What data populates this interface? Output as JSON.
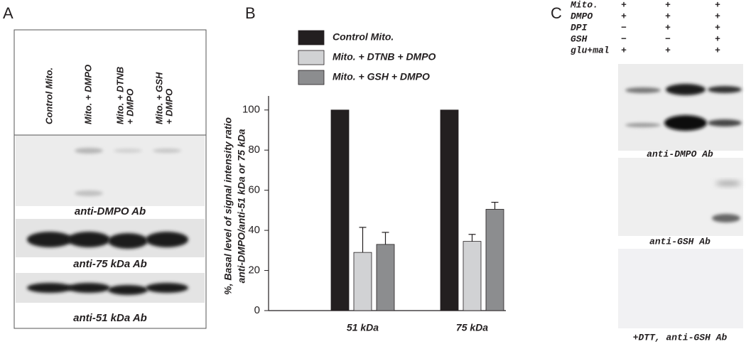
{
  "panel_a": {
    "label": "A",
    "lanes": [
      [
        "Control Mito."
      ],
      [
        "Mito. + DMPO"
      ],
      [
        "Mito. + DTNB",
        "+ DMPO"
      ],
      [
        "Mito. + GSH",
        "+ DMPO"
      ]
    ],
    "captions": [
      "anti-DMPO Ab",
      "anti-75 kDa Ab",
      "anti-51 kDa Ab"
    ]
  },
  "chart_data": {
    "type": "bar",
    "label": "B",
    "ylabel": [
      "%, Basal level of signal intensity ratio",
      "anti-DMPO/anti-51 kDa or 75 kDa"
    ],
    "categories": [
      "51 kDa",
      "75 kDa"
    ],
    "series": [
      {
        "name": "Control Mito.",
        "color": "#231f20",
        "values": [
          100,
          100
        ]
      },
      {
        "name": "Mito. + DTNB + DMPO",
        "color": "#d1d2d4",
        "values": [
          29,
          34.5
        ],
        "errors": [
          12.5,
          3.5
        ]
      },
      {
        "name": "Mito. + GSH + DMPO",
        "color": "#8c8d8f",
        "values": [
          33,
          50.5
        ],
        "errors": [
          6,
          3.5
        ]
      }
    ],
    "ylim": [
      0,
      107
    ],
    "yticks": [
      0,
      20,
      40,
      60,
      80,
      100
    ]
  },
  "panel_c": {
    "label": "C",
    "rows": [
      "Mito.",
      "DMPO",
      "DPI",
      "GSH",
      "glu+mal"
    ],
    "signs": [
      [
        "+",
        "+",
        "+"
      ],
      [
        "+",
        "+",
        "+"
      ],
      [
        "−",
        "+",
        "+"
      ],
      [
        "−",
        "−",
        "+"
      ],
      [
        "+",
        "+",
        "+"
      ]
    ],
    "captions": [
      "anti-DMPO Ab",
      "anti-GSH Ab",
      "+DTT, anti-GSH Ab"
    ]
  }
}
